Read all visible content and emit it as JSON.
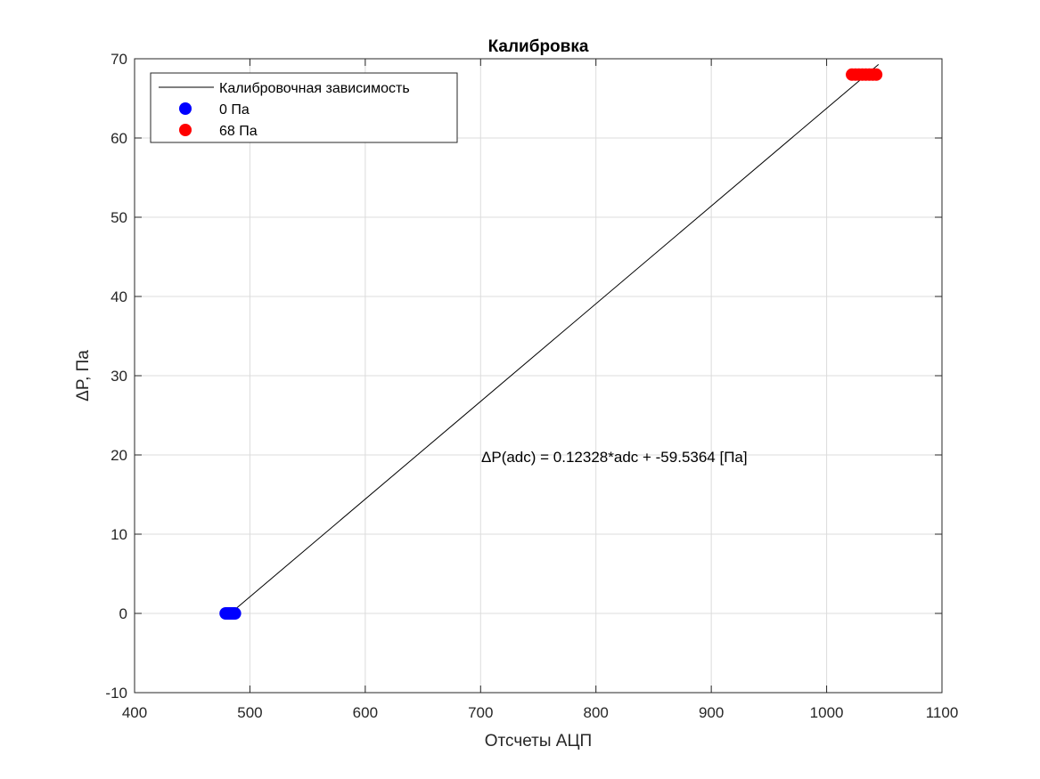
{
  "chart_data": {
    "type": "scatter",
    "title": "Калибровка",
    "xlabel": "Отсчеты АЦП",
    "ylabel": "ΔP, Па",
    "xlim": [
      400,
      1100
    ],
    "ylim": [
      -10,
      70
    ],
    "xticks": [
      400,
      500,
      600,
      700,
      800,
      900,
      1000,
      1100
    ],
    "yticks": [
      -10,
      0,
      10,
      20,
      30,
      40,
      50,
      60,
      70
    ],
    "grid": true,
    "legend_position": "top-left",
    "series": [
      {
        "name": "Калибровочная зависимость",
        "kind": "line",
        "color": "#000000",
        "x": [
          483,
          1045
        ],
        "y": [
          0,
          69.29
        ]
      },
      {
        "name": "0 Па",
        "kind": "scatter",
        "color": "#0000ff",
        "x": [
          479,
          480,
          481,
          482,
          483,
          484,
          485,
          486,
          487
        ],
        "y": [
          0,
          0,
          0,
          0,
          0,
          0,
          0,
          0,
          0
        ]
      },
      {
        "name": "68 Па",
        "kind": "scatter",
        "color": "#ff0000",
        "x": [
          1022,
          1025,
          1028,
          1031,
          1034,
          1037,
          1040,
          1043
        ],
        "y": [
          68,
          68,
          68,
          68,
          68,
          68,
          68,
          68
        ]
      }
    ],
    "annotations": [
      {
        "text": "ΔP(adc) = 0.12328*adc + -59.5364 [Па]",
        "x": 700,
        "y": 19.5
      }
    ]
  }
}
